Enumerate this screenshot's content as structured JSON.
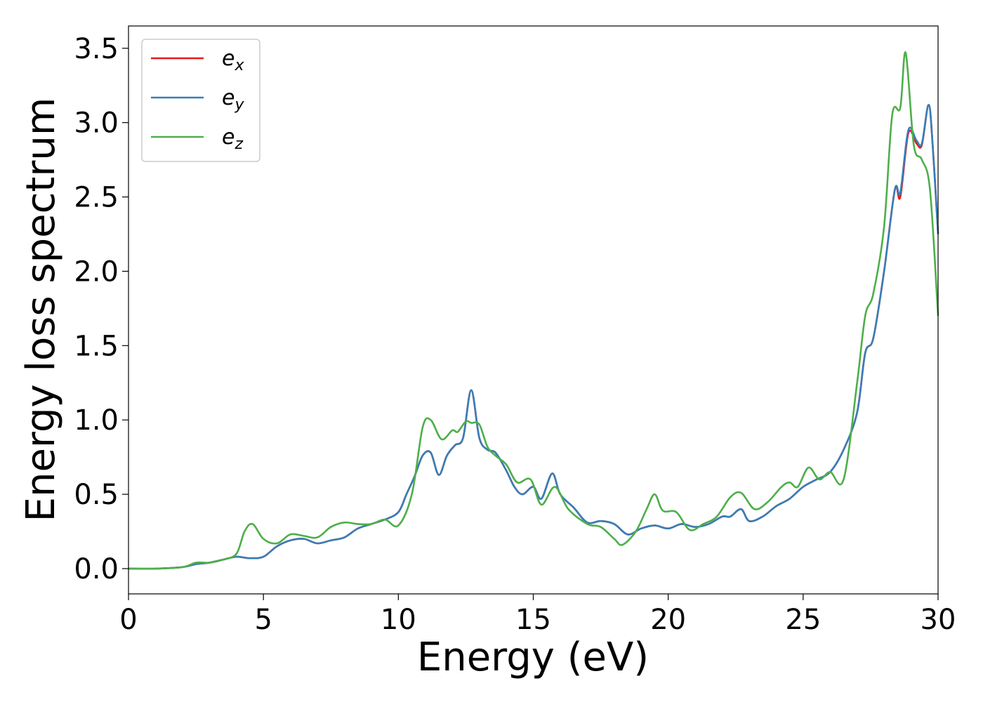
{
  "chart_data": {
    "type": "line",
    "xlabel": "Energy (eV)",
    "ylabel": "Energy loss spectrum",
    "xlim": [
      0,
      30
    ],
    "ylim": [
      -0.17,
      3.65
    ],
    "xticks": [
      0,
      5,
      10,
      15,
      20,
      25,
      30
    ],
    "xtick_labels": [
      "0",
      "5",
      "10",
      "15",
      "20",
      "25",
      "30"
    ],
    "yticks": [
      0.0,
      0.5,
      1.0,
      1.5,
      2.0,
      2.5,
      3.0,
      3.5
    ],
    "ytick_labels": [
      "0.0",
      "0.5",
      "1.0",
      "1.5",
      "2.0",
      "2.5",
      "3.0",
      "3.5"
    ],
    "grid": false,
    "legend_position": "top-left",
    "series": [
      {
        "name": "e_x",
        "base": "e",
        "sub": "x",
        "color": "#e41a1c",
        "x": [
          0,
          1,
          2,
          2.5,
          3,
          3.5,
          4,
          4.5,
          5,
          5.5,
          6,
          6.5,
          7,
          7.5,
          8,
          8.5,
          9,
          9.5,
          10,
          10.3,
          10.6,
          10.9,
          11.2,
          11.5,
          11.8,
          12.1,
          12.4,
          12.7,
          13,
          13.3,
          13.6,
          14,
          14.3,
          14.6,
          15,
          15.3,
          15.7,
          16,
          16.5,
          17,
          17.5,
          18,
          18.5,
          19,
          19.5,
          20,
          20.5,
          21,
          21.5,
          22,
          22.3,
          22.7,
          23,
          23.5,
          24,
          24.5,
          25,
          25.5,
          26,
          26.5,
          27,
          27.3,
          27.6,
          28,
          28.4,
          28.6,
          28.9,
          29.2,
          29.4,
          29.65,
          29.8,
          30
        ],
        "y": [
          0,
          0,
          0.01,
          0.03,
          0.04,
          0.06,
          0.08,
          0.07,
          0.08,
          0.15,
          0.19,
          0.2,
          0.17,
          0.19,
          0.21,
          0.27,
          0.3,
          0.33,
          0.38,
          0.5,
          0.62,
          0.76,
          0.78,
          0.63,
          0.76,
          0.83,
          0.88,
          1.2,
          0.88,
          0.8,
          0.78,
          0.66,
          0.55,
          0.5,
          0.55,
          0.47,
          0.64,
          0.5,
          0.41,
          0.31,
          0.32,
          0.3,
          0.23,
          0.27,
          0.29,
          0.27,
          0.3,
          0.28,
          0.3,
          0.35,
          0.35,
          0.4,
          0.32,
          0.35,
          0.42,
          0.47,
          0.55,
          0.6,
          0.65,
          0.8,
          1.05,
          1.45,
          1.55,
          2.0,
          2.55,
          2.5,
          2.93,
          2.86,
          2.85,
          3.12,
          2.85,
          2.25
        ]
      },
      {
        "name": "e_y",
        "base": "e",
        "sub": "y",
        "color": "#377eb8",
        "x": [
          0,
          1,
          2,
          2.5,
          3,
          3.5,
          4,
          4.5,
          5,
          5.5,
          6,
          6.5,
          7,
          7.5,
          8,
          8.5,
          9,
          9.5,
          10,
          10.3,
          10.6,
          10.9,
          11.2,
          11.5,
          11.8,
          12.1,
          12.4,
          12.7,
          13,
          13.3,
          13.6,
          14,
          14.3,
          14.6,
          15,
          15.3,
          15.7,
          16,
          16.5,
          17,
          17.5,
          18,
          18.5,
          19,
          19.5,
          20,
          20.5,
          21,
          21.5,
          22,
          22.3,
          22.7,
          23,
          23.5,
          24,
          24.5,
          25,
          25.5,
          26,
          26.5,
          27,
          27.3,
          27.6,
          28,
          28.4,
          28.6,
          28.9,
          29.2,
          29.4,
          29.65,
          29.8,
          30
        ],
        "y": [
          0,
          0,
          0.01,
          0.03,
          0.04,
          0.06,
          0.08,
          0.07,
          0.08,
          0.15,
          0.19,
          0.2,
          0.17,
          0.19,
          0.21,
          0.27,
          0.3,
          0.33,
          0.38,
          0.5,
          0.62,
          0.76,
          0.78,
          0.63,
          0.76,
          0.83,
          0.88,
          1.2,
          0.88,
          0.8,
          0.78,
          0.66,
          0.55,
          0.5,
          0.55,
          0.47,
          0.64,
          0.5,
          0.41,
          0.31,
          0.32,
          0.3,
          0.23,
          0.27,
          0.29,
          0.27,
          0.3,
          0.28,
          0.3,
          0.35,
          0.35,
          0.4,
          0.32,
          0.35,
          0.42,
          0.47,
          0.55,
          0.6,
          0.65,
          0.8,
          1.05,
          1.45,
          1.55,
          2.0,
          2.55,
          2.53,
          2.95,
          2.88,
          2.86,
          3.12,
          2.85,
          2.25
        ]
      },
      {
        "name": "e_z",
        "base": "e",
        "sub": "z",
        "color": "#4daf4a",
        "x": [
          0,
          1,
          2,
          2.5,
          3,
          3.5,
          4,
          4.3,
          4.6,
          5,
          5.5,
          6,
          6.5,
          7,
          7.5,
          8,
          8.5,
          9,
          9.5,
          10,
          10.5,
          10.9,
          11.2,
          11.6,
          12,
          12.2,
          12.5,
          12.7,
          13,
          13.3,
          13.6,
          14,
          14.4,
          14.9,
          15.3,
          15.8,
          16.3,
          17,
          17.5,
          18,
          18.3,
          18.8,
          19.2,
          19.5,
          19.8,
          20.3,
          20.8,
          21.3,
          21.8,
          22.3,
          22.7,
          23.2,
          23.7,
          24.2,
          24.5,
          24.8,
          25.2,
          25.6,
          26,
          26.5,
          27,
          27.3,
          27.6,
          28,
          28.3,
          28.6,
          28.8,
          29.1,
          29.4,
          29.7,
          30
        ],
        "y": [
          0,
          0,
          0.01,
          0.04,
          0.04,
          0.06,
          0.1,
          0.25,
          0.3,
          0.2,
          0.17,
          0.23,
          0.22,
          0.21,
          0.28,
          0.31,
          0.3,
          0.3,
          0.33,
          0.29,
          0.5,
          0.95,
          1.0,
          0.87,
          0.93,
          0.92,
          0.99,
          0.98,
          0.97,
          0.82,
          0.76,
          0.7,
          0.58,
          0.6,
          0.43,
          0.55,
          0.4,
          0.3,
          0.28,
          0.2,
          0.16,
          0.25,
          0.4,
          0.5,
          0.39,
          0.38,
          0.26,
          0.3,
          0.35,
          0.48,
          0.51,
          0.4,
          0.45,
          0.55,
          0.58,
          0.55,
          0.68,
          0.6,
          0.65,
          0.6,
          1.25,
          1.7,
          1.85,
          2.3,
          3.05,
          3.1,
          3.47,
          2.85,
          2.75,
          2.55,
          1.7
        ]
      }
    ]
  }
}
